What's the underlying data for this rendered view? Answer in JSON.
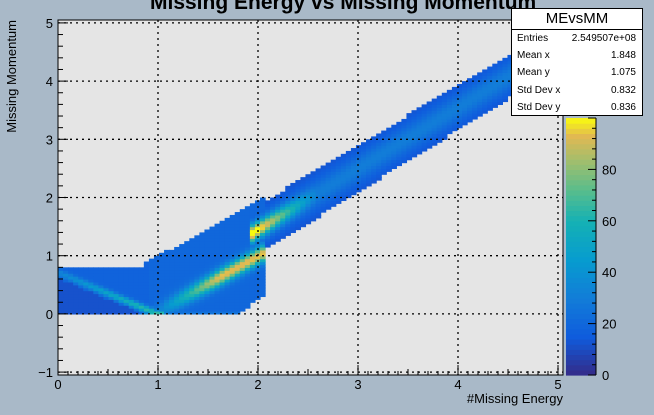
{
  "chart_data": {
    "type": "heatmap",
    "title": "Missing Energy vs Missing Momentum",
    "xlabel": "#Missing Energy",
    "ylabel": "Missing Momentum",
    "xlim": [
      0,
      5.05
    ],
    "ylim": [
      -1.05,
      5.05
    ],
    "x_ticks": [
      "0",
      "1",
      "2",
      "3",
      "4",
      "5"
    ],
    "y_ticks": [
      "−1",
      "0",
      "1",
      "2",
      "3",
      "4",
      "5"
    ],
    "grid": true,
    "z_ticks": [
      "0",
      "20",
      "40",
      "60",
      "80"
    ],
    "z_range": [
      0,
      100
    ],
    "colormap": "parula",
    "description_regions": [
      {
        "x": [
          0,
          1.0
        ],
        "y_low_to_high": [
          [
            0.7,
            0.75
          ],
          [
            0.03,
            0.07
          ]
        ]
      },
      {
        "x": [
          0.95,
          2.0
        ],
        "y": [
          0,
          2.0
        ],
        "note": "high density band"
      },
      {
        "x": [
          2.0,
          4.85
        ],
        "y": [
          1.0,
          4.85
        ],
        "note": "diagonal band"
      }
    ]
  },
  "stats": {
    "name": "MEvsMM",
    "rows": [
      {
        "label": "Entries",
        "value": "2.549507e+08"
      },
      {
        "label": "Mean x",
        "value": "1.848"
      },
      {
        "label": "Mean y",
        "value": "1.075"
      },
      {
        "label": "Std Dev x",
        "value": "0.832"
      },
      {
        "label": "Std Dev y",
        "value": "0.836"
      }
    ]
  },
  "colors": {
    "background": "#a9b9c8",
    "frame": "#e5e5e5"
  }
}
